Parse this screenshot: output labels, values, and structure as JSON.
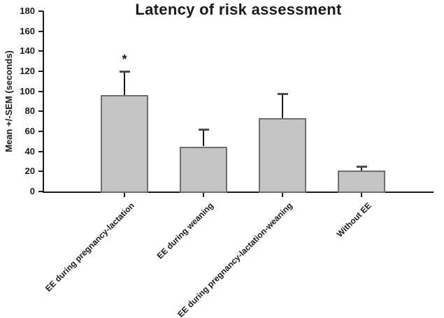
{
  "chart_data": {
    "type": "bar",
    "title": "Latency of risk assessment",
    "ylabel": "Mean +/-SEM (seconds)",
    "xlabel": "",
    "categories": [
      "EE during pregnancy-lactation",
      "EE during weaning",
      "EE during pregnancy-lactation-weaning",
      "Without EE"
    ],
    "values": [
      96,
      45,
      73,
      21
    ],
    "error_plus": [
      24,
      17,
      25,
      4
    ],
    "ylim": [
      0,
      180
    ],
    "yticks": [
      0,
      20,
      40,
      60,
      80,
      100,
      120,
      140,
      160,
      180
    ],
    "grid": false,
    "legend": "none",
    "annotations": [
      {
        "text": "*",
        "bar_index": 0
      }
    ],
    "colors": {
      "bar_fill": "#c4c4c4",
      "bar_border": "#6e6e6e",
      "error_line": "#1a1a1a",
      "error_cap": "#4d4d4d",
      "axis": "#1a1a1a",
      "text": "#1a1a1a",
      "background": "#ffffff"
    }
  }
}
